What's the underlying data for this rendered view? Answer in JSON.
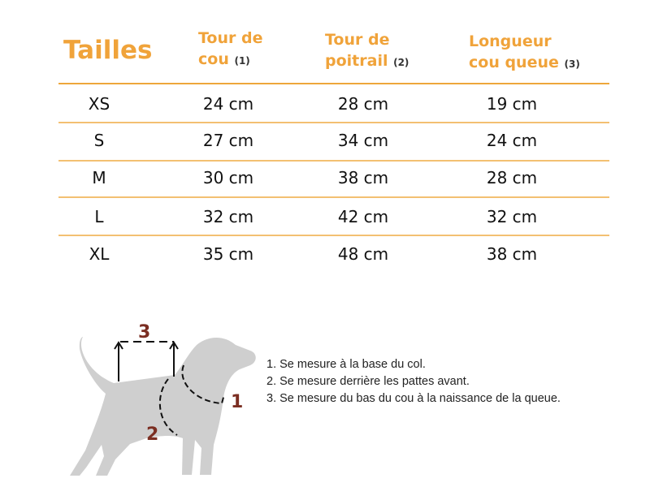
{
  "header": {
    "title": "Tailles",
    "columns": [
      {
        "line1": "Tour de",
        "line2": "cou",
        "ref": "(1)"
      },
      {
        "line1": "Tour de",
        "line2": "poitrail",
        "ref": "(2)"
      },
      {
        "line1": "Longueur",
        "line2": "cou queue",
        "ref": "(3)"
      }
    ]
  },
  "rows": [
    {
      "size": "XS",
      "values": [
        "24 cm",
        "28 cm",
        "19 cm"
      ]
    },
    {
      "size": "S",
      "values": [
        "27 cm",
        "34 cm",
        "24 cm"
      ]
    },
    {
      "size": "M",
      "values": [
        "30 cm",
        "38 cm",
        "28 cm"
      ]
    },
    {
      "size": "L",
      "values": [
        "32 cm",
        "42 cm",
        "32 cm"
      ]
    },
    {
      "size": "XL",
      "values": [
        "35 cm",
        "48 cm",
        "38 cm"
      ]
    }
  ],
  "diagram": {
    "labels": [
      "1",
      "2",
      "3"
    ],
    "label_color": "#7b2e22",
    "dog_color": "#cfcfcf"
  },
  "notes": [
    "1. Se mesure à la base du col.",
    "2. Se mesure derrière les pattes avant.",
    "3. Se mesure du bas du cou à la naissance de la queue."
  ],
  "colors": {
    "accent": "#f0a33a"
  }
}
